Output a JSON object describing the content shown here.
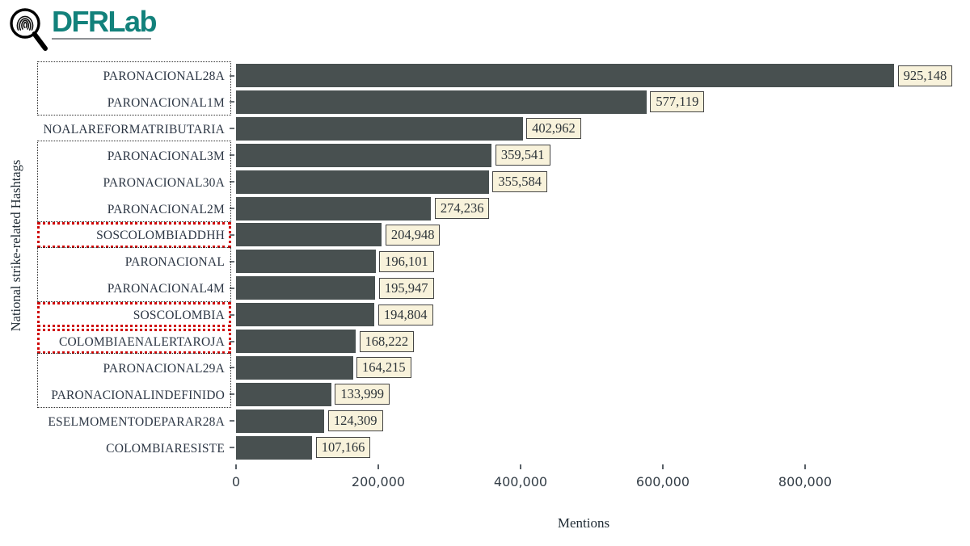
{
  "logo": {
    "text": "DFRLab",
    "text_color": "#12817b",
    "underline_color": "#8d9194",
    "icon": "fingerprint-magnifier-icon"
  },
  "chart_data": {
    "type": "bar",
    "orientation": "horizontal",
    "title": "",
    "xlabel": "Mentions",
    "ylabel": "National strike-related Hashtags",
    "categories": [
      "PARONACIONAL28A",
      "PARONACIONAL1M",
      "NOALAREFORMATRIBUTARIA",
      "PARONACIONAL3M",
      "PARONACIONAL30A",
      "PARONACIONAL2M",
      "SOSCOLOMBIADDHH",
      "PARONACIONAL",
      "PARONACIONAL4M",
      "SOSCOLOMBIA",
      "COLOMBIAENALERTAROJA",
      "PARONACIONAL29A",
      "PARONACIONALINDEFINIDO",
      "ESELMOMENTODEPARAR28A",
      "COLOMBIARESISTE"
    ],
    "values": [
      925148,
      577119,
      402962,
      359541,
      355584,
      274236,
      204948,
      196101,
      195947,
      194804,
      168222,
      164215,
      133999,
      124309,
      107166
    ],
    "value_labels": [
      "925,148",
      "577,119",
      "402,962",
      "359,541",
      "355,584",
      "274,236",
      "204,948",
      "196,101",
      "195,947",
      "194,804",
      "168,222",
      "164,215",
      "133,999",
      "124,309",
      "107,166"
    ],
    "x_ticks": [
      {
        "value": 0,
        "label": "0"
      },
      {
        "value": 200000,
        "label": "200,000"
      },
      {
        "value": 400000,
        "label": "400,000"
      },
      {
        "value": 600000,
        "label": "600,000"
      },
      {
        "value": 800000,
        "label": "800,000"
      }
    ],
    "xlim": [
      0,
      1030000
    ],
    "grid": false,
    "legend": false,
    "bar_color": "#485050",
    "value_box_bg": "#f8f2db",
    "value_box_border": "#454545",
    "group_boxes": [
      {
        "start": 0,
        "end": 1,
        "style": "black"
      },
      {
        "start": 3,
        "end": 5,
        "style": "black"
      },
      {
        "start": 6,
        "end": 6,
        "style": "red"
      },
      {
        "start": 7,
        "end": 8,
        "style": "black"
      },
      {
        "start": 9,
        "end": 9,
        "style": "red"
      },
      {
        "start": 10,
        "end": 10,
        "style": "red"
      },
      {
        "start": 11,
        "end": 12,
        "style": "black"
      }
    ],
    "group_box_colors": {
      "black": "#2e2e2e",
      "red": "#cf0606"
    }
  }
}
